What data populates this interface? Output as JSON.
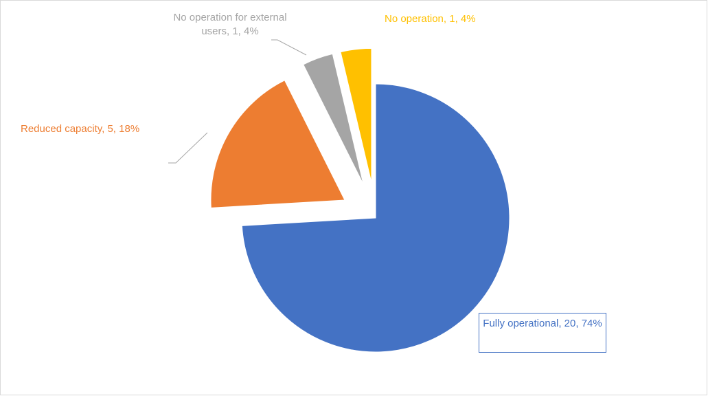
{
  "chart_data": {
    "type": "pie",
    "values": [
      20,
      5,
      1,
      1
    ],
    "value_labels": [
      "Fully operational, 20, 74%",
      "Reduced capacity, 5, 18%",
      "No operation for external users, 1, 4%",
      "No operation, 1, 4%"
    ],
    "colors": [
      "#4472c4",
      "#ed7d31",
      "#a5a5a5",
      "#ffc000"
    ],
    "explode": [
      0,
      1,
      1,
      1
    ],
    "start_angle": 0,
    "direction": "clockwise"
  }
}
